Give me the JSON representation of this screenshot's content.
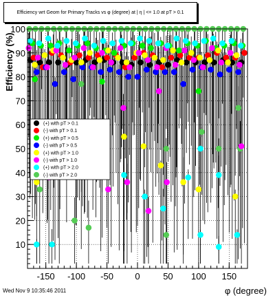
{
  "chart_data": {
    "type": "scatter",
    "title": "Efficiency wrt Geom for Primary Tracks vs φ (degree) at | η | <= 1.0 at pT > 0.1",
    "xlabel": "φ (degree)",
    "ylabel": "Efficiency (%)",
    "xlim": [
      -180,
      180
    ],
    "ylim": [
      0,
      100
    ],
    "xticks": [
      -150,
      -100,
      -50,
      0,
      50,
      100,
      150
    ],
    "yticks": [
      10,
      20,
      30,
      40,
      50,
      60,
      70,
      80,
      90,
      100
    ],
    "grid": true,
    "legend_position": "center-left",
    "series": [
      {
        "name": "(+) with pT > 0.1",
        "color": "#000000",
        "x": [
          -175,
          -160,
          -145,
          -130,
          -115,
          -100,
          -85,
          -70,
          -55,
          -40,
          -25,
          -10,
          5,
          20,
          35,
          50,
          65,
          80,
          95,
          110,
          125,
          140,
          155,
          170
        ],
        "y": [
          87,
          86,
          86,
          86,
          85,
          86,
          87,
          86,
          87,
          86,
          86,
          85,
          86,
          85,
          86,
          85,
          87,
          86,
          86,
          86,
          86,
          87,
          86,
          86
        ]
      },
      {
        "name": "(-) with pT > 0.1",
        "color": "#ff0000",
        "x": [
          -170,
          -155,
          -140,
          -125,
          -110,
          -95,
          -80,
          -65,
          -50,
          -35,
          -20,
          -5,
          10,
          25,
          40,
          55,
          70,
          85,
          100,
          115,
          130,
          145,
          160,
          175
        ],
        "y": [
          88,
          84,
          90,
          89,
          86,
          89,
          88,
          89,
          88,
          89,
          84,
          88,
          90,
          89,
          84,
          88,
          89,
          88,
          88,
          89,
          90,
          88,
          88,
          90
        ]
      },
      {
        "name": "(+) with pT > 0.5",
        "color": "#00ee00",
        "x": [
          -172,
          -158,
          -142,
          -128,
          -112,
          -98,
          -82,
          -68,
          -52,
          -38,
          -22,
          -8,
          8,
          22,
          38,
          52,
          68,
          82,
          98,
          112,
          128,
          142,
          158,
          172
        ],
        "y": [
          94,
          93,
          93,
          94,
          91,
          93,
          94,
          92,
          91,
          90,
          93,
          94,
          93,
          92,
          94,
          93,
          91,
          94,
          93,
          95,
          92,
          93,
          94,
          93
        ]
      },
      {
        "name": "(-) with pT > 0.5",
        "color": "#0000ff",
        "x": [
          -165,
          -150,
          -135,
          -120,
          -105,
          -90,
          -75,
          -60,
          -45,
          -30,
          -15,
          0,
          15,
          30,
          45,
          60,
          75,
          90,
          105,
          120,
          135,
          150,
          165
        ],
        "y": [
          82,
          84,
          77,
          82,
          79,
          84,
          84,
          82,
          83,
          82,
          80,
          80,
          83,
          82,
          82,
          82,
          77,
          83,
          84,
          83,
          81,
          83,
          82
        ]
      },
      {
        "name": "(+) with pT > 1.0",
        "color": "#ffff00",
        "x": [
          -168,
          -152,
          -138,
          -122,
          -108,
          -92,
          -78,
          -62,
          -48,
          -32,
          -18,
          -2,
          12,
          28,
          42,
          58,
          72,
          88,
          102,
          118,
          132,
          148,
          162
        ],
        "y": [
          85,
          89,
          91,
          88,
          87,
          86,
          90,
          87,
          91,
          88,
          86,
          90,
          89,
          88,
          87,
          91,
          86,
          90,
          88,
          87,
          91,
          86,
          89
        ]
      },
      {
        "name": "(-) with pT > 1.0",
        "color": "#ff00ff",
        "x": [
          -178,
          -163,
          -148,
          -133,
          -118,
          -103,
          -88,
          -73,
          -58,
          -43,
          -28,
          -13,
          2,
          17,
          32,
          47,
          62,
          77,
          92,
          107,
          122,
          137,
          152,
          167
        ],
        "y": [
          92,
          88,
          84,
          91,
          85,
          88,
          92,
          84,
          90,
          86,
          92,
          84,
          90,
          87,
          84,
          92,
          85,
          91,
          87,
          84,
          92,
          86,
          90,
          85
        ]
      },
      {
        "name": "(+) with pT > 2.0",
        "color": "#00ffff",
        "x": [
          -176,
          -161,
          -146,
          -131,
          -116,
          -101,
          -86,
          -71,
          -56,
          -41,
          -26,
          -11,
          4,
          19,
          34,
          49,
          64,
          79,
          94,
          109,
          124,
          139,
          154,
          169
        ],
        "y": [
          95,
          94,
          96,
          93,
          95,
          94,
          96,
          93,
          95,
          94,
          95,
          94,
          96,
          95,
          94,
          93,
          96,
          95,
          94,
          95,
          96,
          94,
          95,
          93
        ]
      },
      {
        "name": "(-) with pT > 2.0",
        "color": "#55cc55",
        "x": [
          -177,
          -167,
          -157,
          -147,
          -137,
          -127,
          -117,
          -107,
          -97,
          -87,
          -77,
          -67,
          -57,
          -47,
          -37,
          -27,
          -17,
          -7,
          3,
          13,
          23,
          33,
          43,
          53,
          63,
          73,
          83,
          93,
          103,
          113,
          123,
          133,
          143,
          153,
          163,
          173
        ],
        "y": [
          100,
          100,
          100,
          100,
          100,
          100,
          100,
          100,
          100,
          100,
          100,
          100,
          100,
          100,
          100,
          100,
          100,
          100,
          100,
          100,
          100,
          100,
          100,
          100,
          100,
          100,
          100,
          100,
          100,
          100,
          100,
          100,
          100,
          100,
          100,
          100
        ]
      }
    ],
    "outliers": [
      {
        "x": -168,
        "y": 79,
        "color": "#00ee00"
      },
      {
        "x": -165,
        "y": 36,
        "color": "#ffff00"
      },
      {
        "x": -160,
        "y": 33,
        "color": "#55cc55"
      },
      {
        "x": -165,
        "y": 10,
        "color": "#00ffff"
      },
      {
        "x": -140,
        "y": 10,
        "color": "#00ffff"
      },
      {
        "x": -145,
        "y": 38,
        "color": "#ff00ff"
      },
      {
        "x": -128,
        "y": 39,
        "color": "#00ffff"
      },
      {
        "x": -103,
        "y": 20,
        "color": "#55cc55"
      },
      {
        "x": -92,
        "y": 77,
        "color": "#55cc55"
      },
      {
        "x": -80,
        "y": 17,
        "color": "#55cc55"
      },
      {
        "x": -58,
        "y": 78,
        "color": "#00ee00"
      },
      {
        "x": -48,
        "y": 33,
        "color": "#ff00ff"
      },
      {
        "x": -22,
        "y": 55,
        "color": "#ffff00"
      },
      {
        "x": -23,
        "y": 67,
        "color": "#ff00ff"
      },
      {
        "x": -22,
        "y": 39,
        "color": "#00ffff"
      },
      {
        "x": -17,
        "y": 36,
        "color": "#ff00ff"
      },
      {
        "x": 10,
        "y": 51,
        "color": "#ffff00"
      },
      {
        "x": 12,
        "y": 30,
        "color": "#00ffff"
      },
      {
        "x": 18,
        "y": 24,
        "color": "#ff00ff"
      },
      {
        "x": 35,
        "y": 74,
        "color": "#ff00ff"
      },
      {
        "x": 38,
        "y": 43,
        "color": "#ffff00"
      },
      {
        "x": 42,
        "y": 25,
        "color": "#00ffff"
      },
      {
        "x": 47,
        "y": 14,
        "color": "#55cc55"
      },
      {
        "x": 47,
        "y": 50,
        "color": "#55cc55"
      },
      {
        "x": 48,
        "y": 36,
        "color": "#ff00ff"
      },
      {
        "x": 75,
        "y": 36,
        "color": "#ffff00"
      },
      {
        "x": 83,
        "y": 38,
        "color": "#00ffff"
      },
      {
        "x": 100,
        "y": 33,
        "color": "#ffff00"
      },
      {
        "x": 100,
        "y": 74,
        "color": "#00ee00"
      },
      {
        "x": 103,
        "y": 14,
        "color": "#00ffff"
      },
      {
        "x": 103,
        "y": 50,
        "color": "#00ffff"
      },
      {
        "x": 105,
        "y": 57,
        "color": "#55cc55"
      },
      {
        "x": 133,
        "y": 50,
        "color": "#55cc55"
      },
      {
        "x": 133,
        "y": 39,
        "color": "#00ffff"
      },
      {
        "x": 133,
        "y": 9,
        "color": "#00ffff"
      },
      {
        "x": 160,
        "y": 30,
        "color": "#ffff00"
      },
      {
        "x": 163,
        "y": 14,
        "color": "#00ffff"
      },
      {
        "x": 165,
        "y": 67,
        "color": "#55cc55"
      },
      {
        "x": 168,
        "y": 50,
        "color": "#55cc55"
      },
      {
        "x": 170,
        "y": 51,
        "color": "#ff00ff"
      }
    ]
  },
  "footer": {
    "timestamp": "Wed Nov  9 10:35:46 2011"
  }
}
